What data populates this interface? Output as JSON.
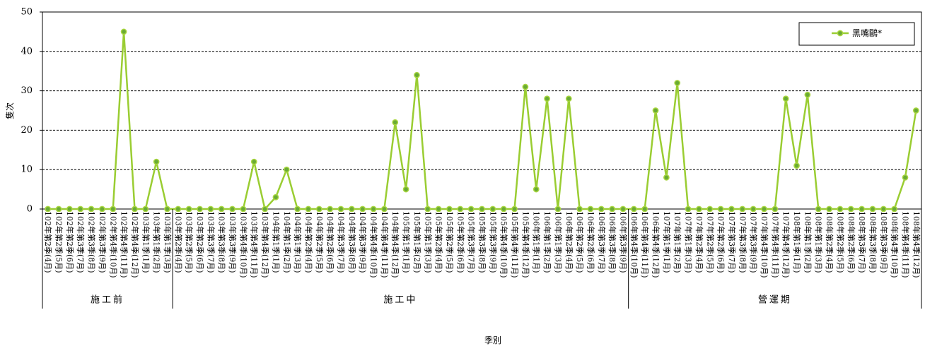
{
  "chart_data": {
    "type": "line",
    "categories": [
      "102年第2季(4月)",
      "102年第2季(5月)",
      "102年第2季(6月)",
      "102年第3季(7月)",
      "102年第3季(8月)",
      "102年第3季(9月)",
      "102年第4季(10月)",
      "102年第4季(11月)",
      "102年第4季(12月)",
      "103年第1季(1月)",
      "103年第1季(2月)",
      "103年第1季(3月)",
      "103年第2季(4月)",
      "103年第2季(5月)",
      "103年第2季(6月)",
      "103年第3季(7月)",
      "103年第3季(8月)",
      "103年第3季(9月)",
      "103年第4季(10月)",
      "103年第4季(11月)",
      "103年第4季(12月)",
      "104年第1季(1月)",
      "104年第1季(2月)",
      "104年第1季(3月)",
      "104年第2季(4月)",
      "104年第2季(5月)",
      "104年第2季(6月)",
      "104年第3季(7月)",
      "104年第3季(8月)",
      "104年第3季(9月)",
      "104年第4季(10月)",
      "104年第4季(11月)",
      "104年第4季(12月)",
      "105年第1季(1月)",
      "105年第1季(2月)",
      "105年第1季(3月)",
      "105年第2季(4月)",
      "105年第2季(5月)",
      "105年第2季(6月)",
      "105年第3季(7月)",
      "105年第3季(8月)",
      "105年第3季(9月)",
      "105年第4季(10月)",
      "105年第4季(11月)",
      "105年第4季(12月)",
      "106年第1季(1月)",
      "106年第1季(2月)",
      "106年第1季(3月)",
      "106年第2季(4月)",
      "106年第2季(5月)",
      "106年第2季(6月)",
      "106年第3季(7月)",
      "106年第3季(8月)",
      "106年第3季(9月)",
      "106年第4季(10月)",
      "106年第4季(11月)",
      "106年第4季(12月)",
      "107年第1季(1月)",
      "107年第1季(2月)",
      "107年第1季(3月)",
      "107年第2季(4月)",
      "107年第2季(5月)",
      "107年第2季(6月)",
      "107年第3季(7月)",
      "107年第3季(8月)",
      "107年第3季(9月)",
      "107年第4季(10月)",
      "107年第4季(11月)",
      "107年第4季(12月)",
      "108年第1季(1月)",
      "108年第1季(2月)",
      "108年第1季(3月)",
      "108年第2季(4月)",
      "108年第2季(5月)",
      "108年第2季(6月)",
      "108年第3季(7月)",
      "108年第3季(8月)",
      "108年第3季(9月)",
      "108年第4季(10月)",
      "108年第4季(11月)",
      "108年第4季(12月)"
    ],
    "series": [
      {
        "name": "黑嘴鷗*",
        "values": [
          0,
          0,
          0,
          0,
          0,
          0,
          0,
          45,
          0,
          0,
          12,
          0,
          0,
          0,
          0,
          0,
          0,
          0,
          0,
          12,
          0,
          3,
          10,
          0,
          0,
          0,
          0,
          0,
          0,
          0,
          0,
          0,
          22,
          5,
          34,
          0,
          0,
          0,
          0,
          0,
          0,
          0,
          0,
          0,
          31,
          5,
          28,
          0,
          28,
          0,
          0,
          0,
          0,
          0,
          0,
          0,
          25,
          8,
          32,
          0,
          0,
          0,
          0,
          0,
          0,
          0,
          0,
          0,
          28,
          11,
          29,
          0,
          0,
          0,
          0,
          0,
          0,
          0,
          0,
          8,
          25
        ]
      }
    ],
    "groups": [
      {
        "label": "施工前",
        "start": 0,
        "end": 11
      },
      {
        "label": "施工中",
        "start": 12,
        "end": 53
      },
      {
        "label": "營運期",
        "start": 54,
        "end": 80
      }
    ],
    "xlabel": "季別",
    "ylabel": "隻次",
    "ylim": [
      0,
      50
    ],
    "yticks": [
      0,
      10,
      20,
      30,
      40,
      50
    ],
    "grid": true,
    "legend": "top-right",
    "colors": {
      "line": "#9ACD32",
      "marker_fill": "#6AAB34",
      "marker_stroke": "#A9D640",
      "grid": "#000000",
      "axis": "#000000"
    }
  }
}
